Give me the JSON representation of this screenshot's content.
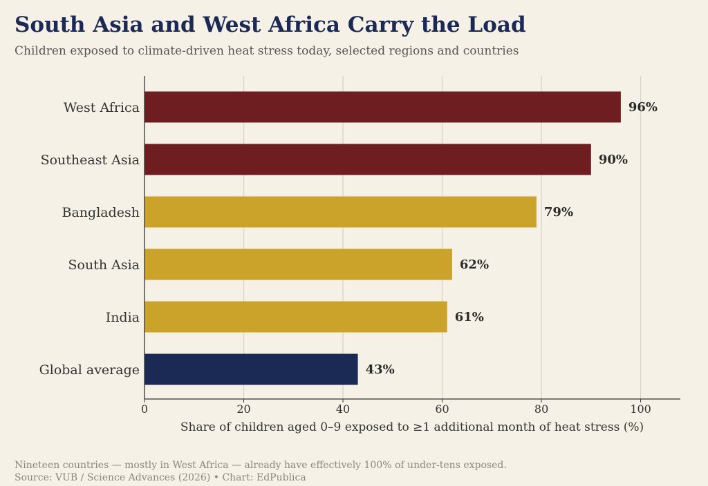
{
  "title": "South Asia and West Africa Carry the Load",
  "subtitle": "Children exposed to climate-driven heat stress today, selected regions and countries",
  "footer": {
    "note": "Nineteen countries — mostly in West Africa — already have effectively 100% of under-tens exposed.",
    "source": "Source: VUB / Science Advances (2026)  •  Chart: EdPublica"
  },
  "colors": {
    "background": "#f5f1e6",
    "highlight": "#6e1e21",
    "regular": "#cba22a",
    "global": "#1b2a55",
    "grid": "#d9d4c4",
    "axis": "#333333"
  },
  "chart_data": {
    "type": "bar",
    "orientation": "horizontal",
    "categories": [
      "West Africa",
      "Southeast Asia",
      "Bangladesh",
      "South Asia",
      "India",
      "Global average"
    ],
    "values": [
      96,
      90,
      79,
      62,
      61,
      43
    ],
    "value_labels": [
      "96%",
      "90%",
      "79%",
      "62%",
      "61%",
      "43%"
    ],
    "bar_color_keys": [
      "highlight",
      "highlight",
      "regular",
      "regular",
      "regular",
      "global"
    ],
    "xlabel": "Share of children aged 0–9 exposed to ≥1 additional month of heat stress (%)",
    "xlim": [
      0,
      108
    ],
    "xticks": [
      0,
      20,
      40,
      60,
      80,
      100
    ],
    "xtick_labels": [
      "0",
      "20",
      "40",
      "60",
      "80",
      "100"
    ],
    "grid": true
  }
}
